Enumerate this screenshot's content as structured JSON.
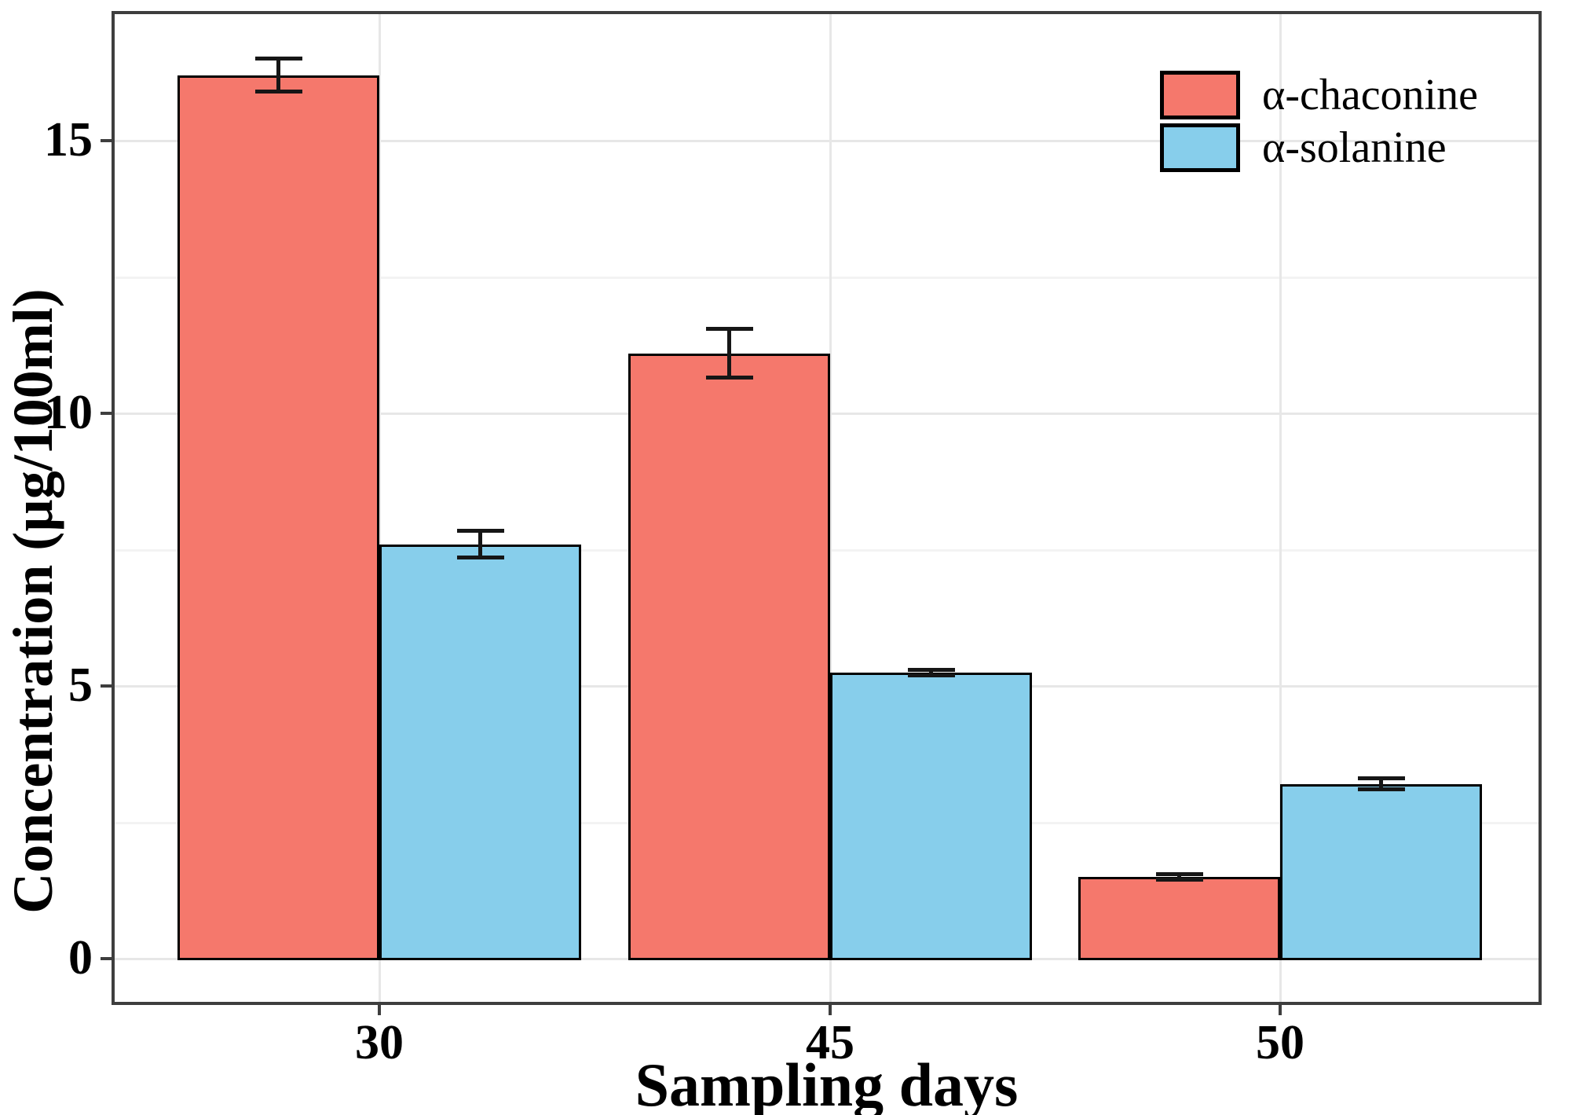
{
  "chart_data": {
    "type": "bar",
    "title": "",
    "categories": [
      "30",
      "45",
      "50"
    ],
    "series": [
      {
        "name": "α-chaconine",
        "color": "#F5786C",
        "values": [
          16.2,
          11.1,
          1.5
        ],
        "errors": [
          0.3,
          0.45,
          0.05
        ]
      },
      {
        "name": "α-solanine",
        "color": "#87CEEB",
        "values": [
          7.6,
          5.25,
          3.2
        ],
        "errors": [
          0.25,
          0.05,
          0.1
        ]
      }
    ],
    "xlabel": "Sampling days",
    "ylabel": "Concentration (µg/100ml)",
    "ylim": [
      0,
      17.4
    ],
    "yticks_major": [
      0,
      5,
      10,
      15
    ],
    "yticks_minor": [
      2.5,
      7.5,
      12.5
    ],
    "grid": "on",
    "error_bars": "yes",
    "legend_position": "top-right",
    "colors": {
      "grid_major": "#E7E7E7",
      "grid_minor": "#F3F3F3",
      "panel_border": "#3E3E3E",
      "bar_border": "#000000",
      "error_bar": "#161616",
      "background": "#FFFFFF"
    }
  }
}
